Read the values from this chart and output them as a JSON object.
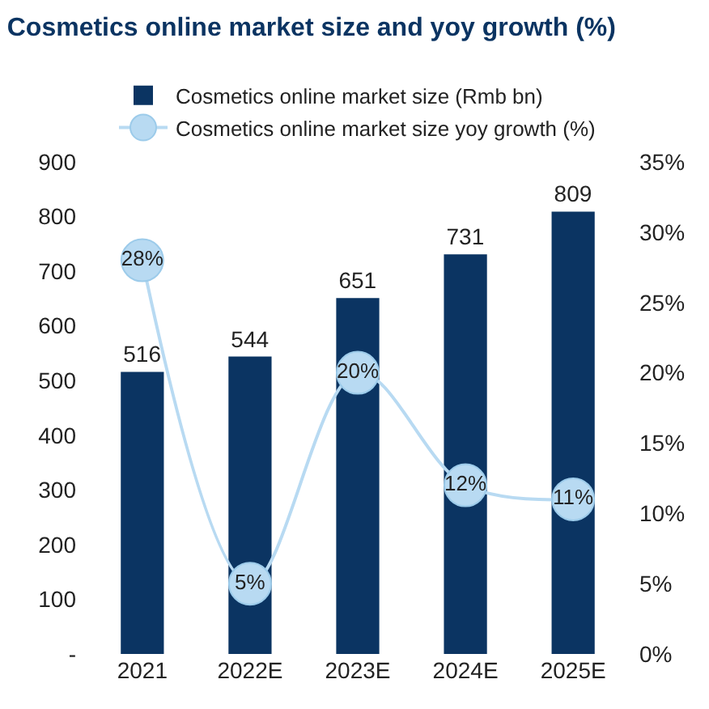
{
  "chart_data": {
    "type": "bar",
    "title": "Cosmetics online market size and yoy growth (%)",
    "categories": [
      "2021",
      "2022E",
      "2023E",
      "2024E",
      "2025E"
    ],
    "series": [
      {
        "name": "Cosmetics online market size (Rmb bn)",
        "color": "#0b3462",
        "values": [
          516,
          544,
          651,
          731,
          809
        ],
        "value_labels": [
          "516",
          "544",
          "651",
          "731",
          "809"
        ]
      },
      {
        "name": "Cosmetics online market size yoy growth (%)",
        "type": "line",
        "axis": "y2",
        "color": "#b8daf2",
        "values": [
          28,
          5,
          20,
          12,
          11
        ],
        "value_labels": [
          "28%",
          "5%",
          "20%",
          "12%",
          "11%"
        ]
      }
    ],
    "ylim": [
      0,
      900
    ],
    "yticks": [
      {
        "value": 0,
        "label": "-"
      },
      100,
      200,
      300,
      400,
      500,
      600,
      700,
      800,
      900
    ],
    "y2lim": [
      0,
      35
    ],
    "y2ticks": [
      {
        "value": 0,
        "label": "0%"
      },
      {
        "value": 5,
        "label": "5%"
      },
      {
        "value": 10,
        "label": "10%"
      },
      {
        "value": 15,
        "label": "15%"
      },
      {
        "value": 20,
        "label": "20%"
      },
      {
        "value": 25,
        "label": "25%"
      },
      {
        "value": 30,
        "label": "30%"
      },
      {
        "value": 35,
        "label": "35%"
      }
    ],
    "legend": "top",
    "marker": "circle",
    "line_style": "solid",
    "grid": false
  }
}
